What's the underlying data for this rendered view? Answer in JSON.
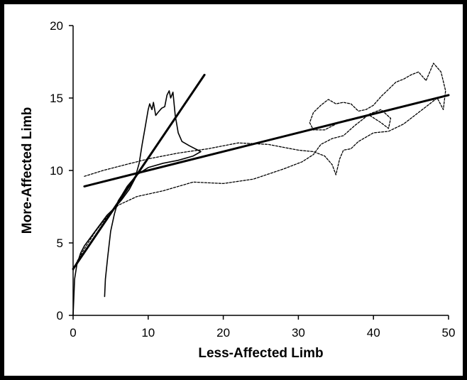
{
  "chart_data": {
    "type": "line",
    "title": "",
    "xlabel": "Less-Affected Limb",
    "ylabel": "More-Affected Limb",
    "xlim": [
      0,
      50
    ],
    "ylim": [
      0,
      20
    ],
    "x_ticks": [
      0,
      10,
      20,
      30,
      40,
      50
    ],
    "y_ticks": [
      0,
      5,
      10,
      15,
      20
    ],
    "grid": false,
    "legend": "none",
    "series": [
      {
        "style": "solid",
        "color": "#000000",
        "points": [
          [
            0,
            0
          ],
          [
            0.2,
            2.5
          ],
          [
            0.5,
            3.5
          ],
          [
            1,
            4.3
          ],
          [
            1.5,
            4.8
          ],
          [
            2.5,
            5.5
          ],
          [
            3.5,
            6.2
          ],
          [
            4.5,
            6.9
          ],
          [
            5.5,
            7.4
          ],
          [
            6.5,
            8.0
          ],
          [
            7.5,
            8.7
          ],
          [
            8.2,
            9.4
          ],
          [
            8.8,
            10.5
          ],
          [
            9.2,
            11.8
          ],
          [
            9.6,
            13.0
          ],
          [
            10.0,
            14.2
          ],
          [
            10.2,
            14.6
          ],
          [
            10.5,
            14.2
          ],
          [
            10.7,
            14.7
          ],
          [
            11.0,
            13.8
          ],
          [
            11.3,
            14.0
          ],
          [
            11.8,
            14.3
          ],
          [
            12.2,
            14.4
          ],
          [
            12.5,
            15.2
          ],
          [
            12.8,
            15.5
          ],
          [
            13.0,
            15.0
          ],
          [
            13.3,
            15.4
          ],
          [
            13.6,
            13.8
          ],
          [
            14.0,
            12.6
          ],
          [
            14.5,
            12.0
          ],
          [
            15.5,
            11.7
          ],
          [
            17.0,
            11.3
          ],
          [
            16.0,
            11.0
          ],
          [
            14.0,
            10.7
          ],
          [
            12.0,
            10.5
          ],
          [
            10.0,
            10.2
          ],
          [
            8.5,
            9.7
          ],
          [
            7.2,
            8.9
          ],
          [
            6.5,
            8.3
          ],
          [
            6.0,
            7.9
          ],
          [
            5.5,
            7.0
          ],
          [
            5.0,
            5.8
          ],
          [
            4.6,
            4.0
          ],
          [
            4.3,
            2.5
          ],
          [
            4.2,
            1.3
          ]
        ]
      },
      {
        "style": "dashed",
        "color": "#000000",
        "points": [
          [
            1.5,
            9.6
          ],
          [
            4,
            10.0
          ],
          [
            7,
            10.4
          ],
          [
            10,
            10.8
          ],
          [
            14,
            11.2
          ],
          [
            18,
            11.5
          ],
          [
            22,
            11.9
          ],
          [
            26,
            11.8
          ],
          [
            28,
            11.6
          ],
          [
            30,
            11.4
          ],
          [
            32,
            11.3
          ],
          [
            33.5,
            11.0
          ],
          [
            34.5,
            10.4
          ],
          [
            35,
            9.7
          ],
          [
            35.5,
            10.8
          ],
          [
            36,
            11.4
          ],
          [
            37,
            11.5
          ],
          [
            38,
            12.0
          ],
          [
            40,
            12.6
          ],
          [
            42,
            12.7
          ],
          [
            44,
            13.2
          ],
          [
            46,
            14.0
          ],
          [
            47.5,
            14.6
          ],
          [
            48.5,
            15.0
          ],
          [
            49.3,
            14.2
          ],
          [
            49.6,
            15.5
          ],
          [
            49.0,
            16.8
          ],
          [
            48.0,
            17.4
          ],
          [
            47.0,
            16.2
          ],
          [
            46.0,
            16.8
          ],
          [
            45.0,
            16.6
          ],
          [
            44.0,
            16.3
          ],
          [
            43.0,
            16.1
          ],
          [
            42.0,
            15.6
          ],
          [
            41.0,
            15.1
          ],
          [
            40.0,
            14.5
          ],
          [
            39.0,
            14.2
          ],
          [
            38.0,
            14.1
          ],
          [
            37.0,
            14.6
          ],
          [
            36.0,
            14.7
          ],
          [
            35.0,
            14.6
          ],
          [
            34.0,
            14.9
          ],
          [
            33.0,
            14.5
          ],
          [
            32.0,
            14.0
          ],
          [
            31.5,
            13.3
          ],
          [
            32.0,
            12.8
          ],
          [
            33.5,
            12.8
          ],
          [
            35.0,
            13.2
          ],
          [
            36.5,
            13.5
          ],
          [
            38.0,
            13.6
          ],
          [
            39.5,
            13.8
          ],
          [
            41.0,
            13.3
          ],
          [
            42.0,
            12.9
          ],
          [
            42.3,
            13.6
          ],
          [
            41.0,
            14.2
          ],
          [
            39.5,
            13.9
          ],
          [
            38.5,
            13.5
          ],
          [
            37.5,
            13.1
          ],
          [
            36.0,
            12.4
          ],
          [
            34.5,
            12.2
          ],
          [
            33.0,
            11.8
          ],
          [
            32.0,
            11.1
          ],
          [
            30.5,
            10.6
          ],
          [
            28.0,
            10.1
          ],
          [
            24.0,
            9.4
          ],
          [
            20.0,
            9.1
          ],
          [
            16.0,
            9.2
          ],
          [
            12.0,
            8.6
          ],
          [
            8.5,
            8.2
          ],
          [
            6.0,
            7.6
          ],
          [
            4.5,
            6.8
          ],
          [
            3.0,
            5.8
          ],
          [
            1.5,
            4.6
          ],
          [
            0.5,
            3.7
          ],
          [
            0.0,
            3.1
          ]
        ]
      },
      {
        "style": "solid-trend",
        "color": "#000000",
        "points": [
          [
            0,
            3.2
          ],
          [
            17.5,
            16.6
          ]
        ]
      },
      {
        "style": "solid-trend",
        "color": "#000000",
        "points": [
          [
            1.5,
            8.9
          ],
          [
            50,
            15.2
          ]
        ]
      }
    ]
  }
}
